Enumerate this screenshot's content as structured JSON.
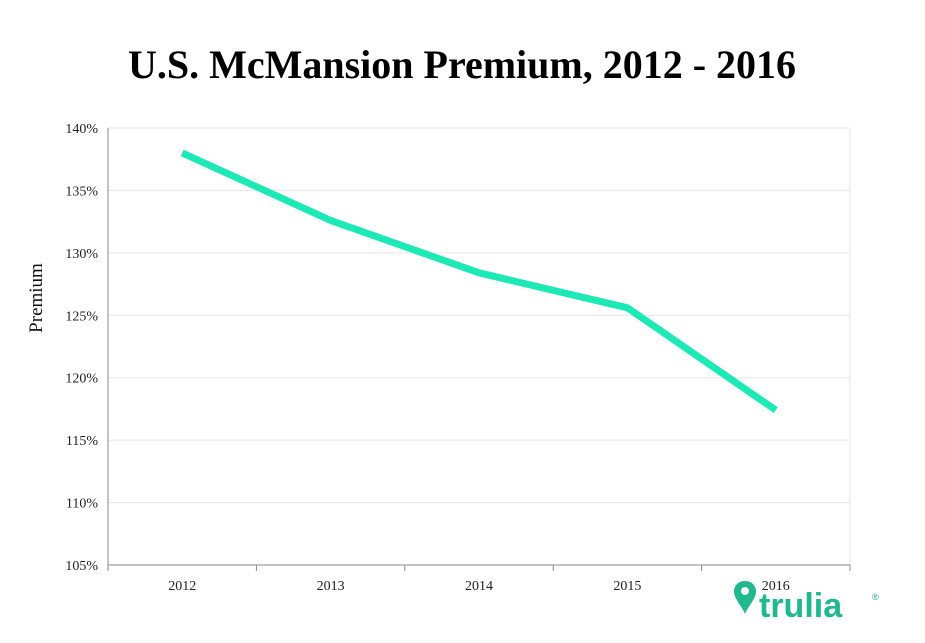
{
  "chart_data": {
    "type": "line",
    "title": "U.S. McMansion Premium, 2012 - 2016",
    "xlabel": "",
    "ylabel": "Premium",
    "categories": [
      "2012",
      "2013",
      "2014",
      "2015",
      "2016"
    ],
    "series": [
      {
        "name": "McMansion Premium",
        "values": [
          138.0,
          132.6,
          128.4,
          125.6,
          117.4
        ]
      }
    ],
    "ylim": [
      105,
      140
    ],
    "yticks": [
      105,
      110,
      115,
      120,
      125,
      130,
      135,
      140
    ],
    "ytick_labels": [
      "105%",
      "110%",
      "115%",
      "120%",
      "125%",
      "130%",
      "135%",
      "140%"
    ],
    "grid": true,
    "line_color": "#1de9b6"
  },
  "brand": {
    "name": "trulia",
    "mark": "®",
    "color": "#1fb88f",
    "icon": "map-pin-icon"
  }
}
